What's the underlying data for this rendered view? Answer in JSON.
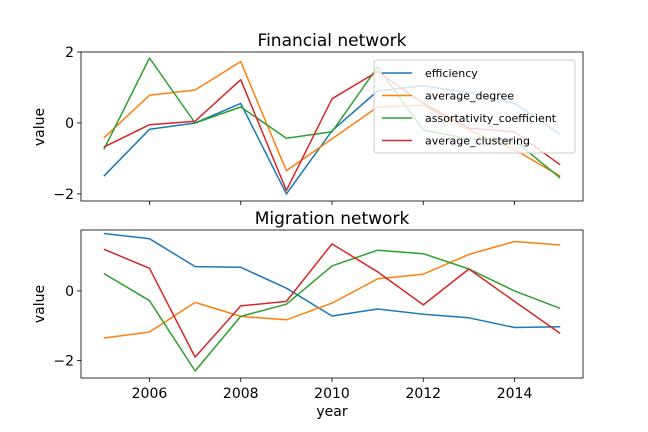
{
  "chart_data": [
    {
      "type": "line",
      "title": "Financial network",
      "xlabel": "",
      "ylabel": "value",
      "xlim": [
        2004.5,
        2015.5
      ],
      "ylim": [
        -2.2,
        2.0
      ],
      "yticks": [
        -2,
        0,
        2
      ],
      "x": [
        2005,
        2006,
        2007,
        2008,
        2009,
        2010,
        2011,
        2012,
        2013,
        2014,
        2015
      ],
      "legend": {
        "position": "upper right"
      },
      "series": [
        {
          "name": "efficiency",
          "color": "#1f77b4",
          "values": [
            -1.5,
            -0.18,
            0.0,
            0.55,
            -2.0,
            -0.22,
            0.9,
            1.05,
            0.85,
            0.55,
            -0.32
          ]
        },
        {
          "name": "average_degree",
          "color": "#ff7f0e",
          "values": [
            -0.42,
            0.78,
            0.93,
            1.73,
            -1.35,
            -0.45,
            0.45,
            0.5,
            -0.2,
            -0.75,
            -1.5
          ]
        },
        {
          "name": "assortativity_coefficient",
          "color": "#2ca02c",
          "values": [
            -0.75,
            1.83,
            0.0,
            0.45,
            -0.43,
            -0.25,
            1.58,
            -0.2,
            -0.45,
            -0.5,
            -1.55
          ]
        },
        {
          "name": "average_clustering",
          "color": "#d62728",
          "values": [
            -0.68,
            -0.05,
            0.05,
            1.22,
            -1.9,
            0.68,
            1.45,
            0.55,
            -0.15,
            -0.25,
            -1.18
          ]
        }
      ]
    },
    {
      "type": "line",
      "title": "Migration network",
      "xlabel": "year",
      "ylabel": "value",
      "xlim": [
        2004.5,
        2015.5
      ],
      "ylim": [
        -2.5,
        1.75
      ],
      "yticks": [
        -2,
        0
      ],
      "xticks": [
        2006,
        2008,
        2010,
        2012,
        2014
      ],
      "x": [
        2005,
        2006,
        2007,
        2008,
        2009,
        2010,
        2011,
        2012,
        2013,
        2014,
        2015
      ],
      "series": [
        {
          "name": "efficiency",
          "color": "#1f77b4",
          "values": [
            1.65,
            1.5,
            0.7,
            0.68,
            0.08,
            -0.72,
            -0.52,
            -0.67,
            -0.77,
            -1.05,
            -1.03
          ]
        },
        {
          "name": "average_degree",
          "color": "#ff7f0e",
          "values": [
            -1.35,
            -1.18,
            -0.33,
            -0.73,
            -0.83,
            -0.35,
            0.35,
            0.48,
            1.05,
            1.42,
            1.32
          ]
        },
        {
          "name": "assortativity_coefficient",
          "color": "#2ca02c",
          "values": [
            0.5,
            -0.28,
            -2.3,
            -0.73,
            -0.38,
            0.72,
            1.17,
            1.07,
            0.63,
            0.0,
            -0.5
          ]
        },
        {
          "name": "average_clustering",
          "color": "#d62728",
          "values": [
            1.2,
            0.65,
            -1.9,
            -0.43,
            -0.3,
            1.35,
            0.55,
            -0.4,
            0.63,
            -0.3,
            -1.22
          ]
        }
      ]
    }
  ]
}
